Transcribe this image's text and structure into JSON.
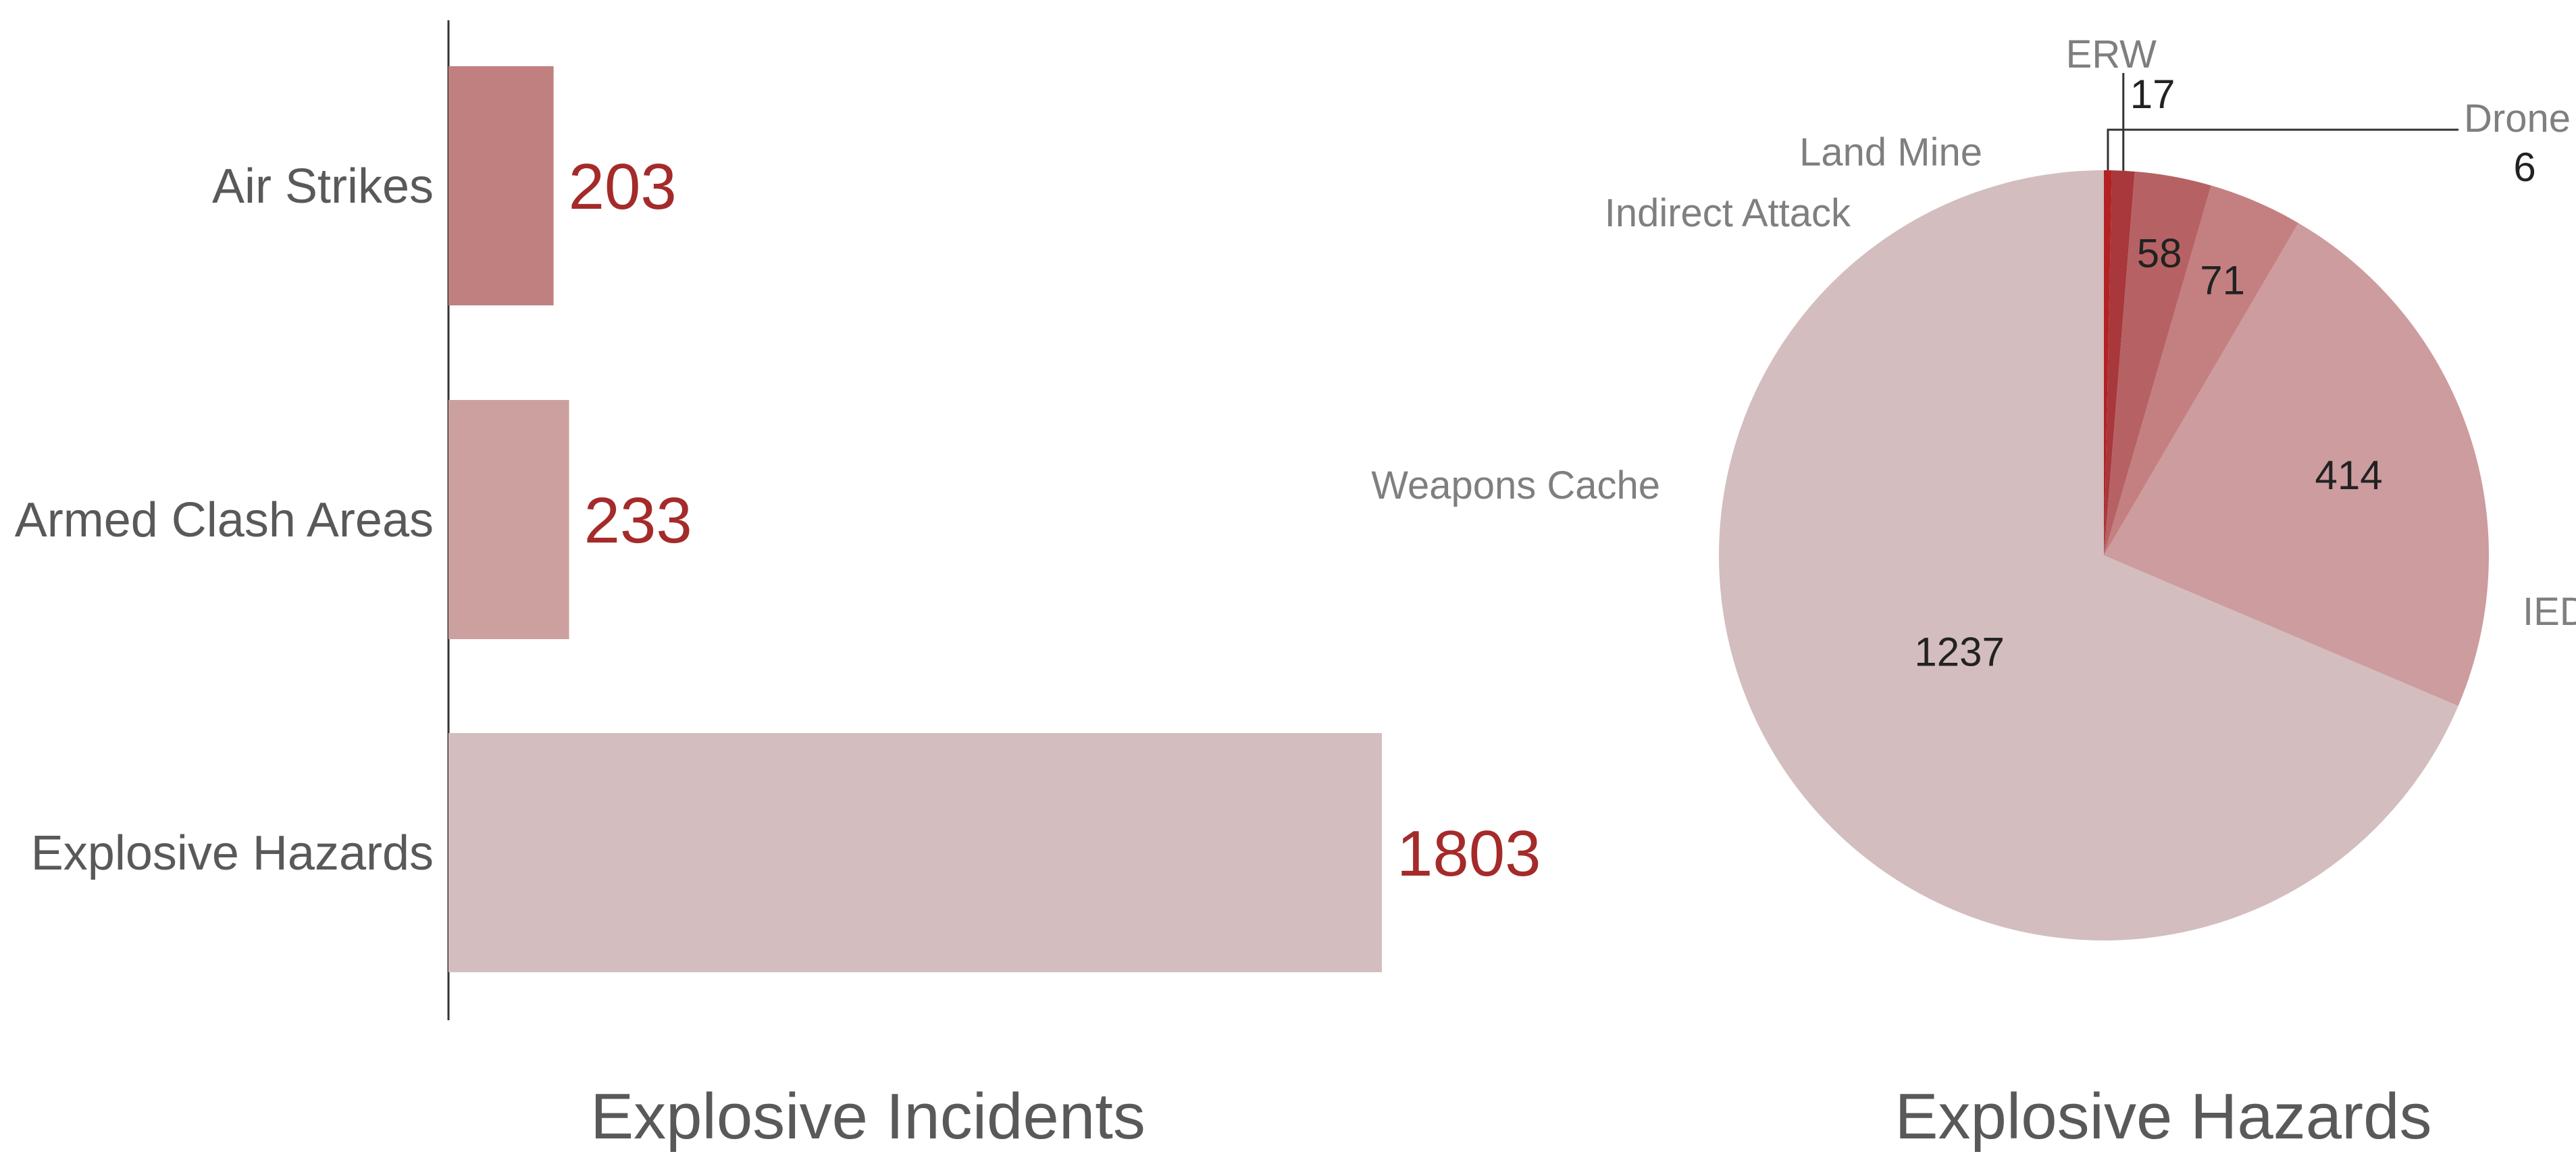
{
  "chart_data": [
    {
      "type": "bar",
      "orientation": "horizontal",
      "title": "Explosive Incidents",
      "categories": [
        "Air Strikes",
        "Armed Clash Areas",
        "Explosive Hazards"
      ],
      "values": [
        203,
        233,
        1803
      ],
      "value_labels": [
        "203",
        "233",
        "1803"
      ],
      "colors": [
        "#c08080",
        "#cda0a0",
        "#d3bdbf"
      ],
      "value_label_color": "#a52a2a",
      "xlim": [
        0,
        1803
      ],
      "grid": false,
      "legend": "none"
    },
    {
      "type": "pie",
      "title": "Explosive Hazards",
      "slices": [
        {
          "label": "IED",
          "value": 1237,
          "value_label": "1237",
          "color": "#d3bdbf"
        },
        {
          "label": "Weapons Cache",
          "value": 414,
          "value_label": "414",
          "color": "#cd9c9e"
        },
        {
          "label": "Indirect Attack",
          "value": 71,
          "value_label": "71",
          "color": "#c48080"
        },
        {
          "label": "Land Mine",
          "value": 58,
          "value_label": "58",
          "color": "#b66264"
        },
        {
          "label": "ERW",
          "value": 17,
          "value_label": "17",
          "color": "#a8383c"
        },
        {
          "label": "Drone",
          "value": 6,
          "value_label": "6",
          "color": "#b22222"
        }
      ],
      "start": "12 o'clock",
      "direction": "counterclockwise",
      "legend": "none"
    }
  ]
}
